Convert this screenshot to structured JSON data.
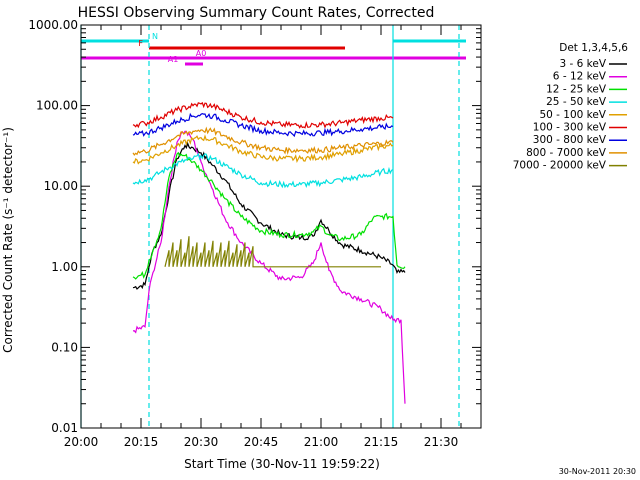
{
  "chart_data": {
    "type": "line",
    "title": "HESSI Observing Summary Count Rates, Corrected",
    "xlabel": "Start Time (30-Nov-11 19:59:22)",
    "ylabel": "Corrected Count Rate (s⁻¹ detector⁻¹)",
    "yscale": "log",
    "ylim": [
      0.01,
      1000
    ],
    "xlim_min": [
      0,
      100
    ],
    "x_tick_labels": [
      "20:00",
      "20:15",
      "20:30",
      "20:45",
      "21:00",
      "21:15",
      "21:30"
    ],
    "x_ticks_min": [
      0,
      15,
      30,
      45,
      60,
      75,
      90
    ],
    "y_tick_labels": [
      "1000.00",
      "100.00",
      "10.00",
      "1.00",
      "0.10",
      "0.01"
    ],
    "y_ticks": [
      1000,
      100,
      10,
      1,
      0.1,
      0.01
    ],
    "legend_title": "Det 1,3,4,5,6",
    "legend_placement": "right, outside",
    "timestamp": "30-Nov-2011 20:30",
    "flags": [
      {
        "label": "N",
        "color": "#00e0e0",
        "segments": [
          [
            0,
            17
          ],
          [
            78,
            100
          ]
        ]
      },
      {
        "label": "F",
        "color": "#e00000",
        "segments": [
          [
            17,
            66
          ]
        ]
      },
      {
        "label": "A0",
        "color": "#e000e0",
        "segments": [
          [
            0,
            100
          ]
        ]
      },
      {
        "label": "A1",
        "color": "#e000e0",
        "segments": [
          [
            26,
            30.5
          ]
        ]
      }
    ],
    "vlines": [
      {
        "x": 0,
        "color": "#00e0e0",
        "style": "solid"
      },
      {
        "x": 17,
        "color": "#00e0e0",
        "style": "dashed"
      },
      {
        "x": 78,
        "color": "#00e0e0",
        "style": "solid"
      },
      {
        "x": 94.5,
        "color": "#00e0e0",
        "style": "dashed"
      }
    ],
    "series": [
      {
        "name": "3 - 6 keV",
        "color": "#000000",
        "points": [
          [
            13,
            0.55
          ],
          [
            16,
            0.6
          ],
          [
            17,
            1.0
          ],
          [
            18,
            1.6
          ],
          [
            20,
            2.5
          ],
          [
            22,
            8
          ],
          [
            24,
            22
          ],
          [
            26,
            32
          ],
          [
            28,
            30
          ],
          [
            30,
            26
          ],
          [
            33,
            18
          ],
          [
            36,
            12
          ],
          [
            40,
            6
          ],
          [
            45,
            3.5
          ],
          [
            50,
            2.5
          ],
          [
            55,
            2.3
          ],
          [
            58,
            2.4
          ],
          [
            60,
            3.8
          ],
          [
            62,
            2.8
          ],
          [
            65,
            1.9
          ],
          [
            70,
            1.6
          ],
          [
            75,
            1.3
          ],
          [
            78,
            1.05
          ],
          [
            79,
            0.85
          ],
          [
            81,
            0.85
          ]
        ]
      },
      {
        "name": "6 - 12 keV",
        "color": "#e000e0",
        "points": [
          [
            13,
            0.16
          ],
          [
            16,
            0.18
          ],
          [
            17,
            0.5
          ],
          [
            18,
            0.85
          ],
          [
            20,
            2.0
          ],
          [
            22,
            10
          ],
          [
            24,
            35
          ],
          [
            25,
            45
          ],
          [
            26,
            48
          ],
          [
            28,
            38
          ],
          [
            30,
            20
          ],
          [
            33,
            9
          ],
          [
            36,
            4
          ],
          [
            40,
            2
          ],
          [
            45,
            1.1
          ],
          [
            50,
            0.7
          ],
          [
            55,
            0.75
          ],
          [
            58,
            1.1
          ],
          [
            60,
            2.0
          ],
          [
            62,
            0.9
          ],
          [
            65,
            0.5
          ],
          [
            70,
            0.4
          ],
          [
            75,
            0.3
          ],
          [
            78,
            0.22
          ],
          [
            80,
            0.22
          ],
          [
            81,
            0.02
          ]
        ]
      },
      {
        "name": "12 - 25 keV",
        "color": "#00e000",
        "points": [
          [
            13,
            0.75
          ],
          [
            16,
            0.8
          ],
          [
            17,
            1.2
          ],
          [
            18,
            1.6
          ],
          [
            20,
            3
          ],
          [
            22,
            13
          ],
          [
            24,
            25
          ],
          [
            26,
            24
          ],
          [
            28,
            20
          ],
          [
            30,
            16
          ],
          [
            33,
            11
          ],
          [
            36,
            7
          ],
          [
            40,
            4.2
          ],
          [
            45,
            2.8
          ],
          [
            50,
            2.5
          ],
          [
            55,
            2.5
          ],
          [
            58,
            2.7
          ],
          [
            60,
            3.2
          ],
          [
            62,
            2.5
          ],
          [
            65,
            2.2
          ],
          [
            70,
            2.5
          ],
          [
            73,
            4.0
          ],
          [
            75,
            4.2
          ],
          [
            78,
            4.2
          ],
          [
            79,
            1.05
          ],
          [
            81,
            1.0
          ]
        ]
      },
      {
        "name": "25 - 50 keV",
        "color": "#00e0e0",
        "points": [
          [
            13,
            11
          ],
          [
            16,
            12
          ],
          [
            18,
            13
          ],
          [
            20,
            15
          ],
          [
            22,
            17
          ],
          [
            25,
            20
          ],
          [
            28,
            22
          ],
          [
            30,
            24
          ],
          [
            33,
            22
          ],
          [
            36,
            18
          ],
          [
            40,
            14
          ],
          [
            45,
            11
          ],
          [
            50,
            10.5
          ],
          [
            55,
            10.5
          ],
          [
            60,
            11
          ],
          [
            65,
            12
          ],
          [
            70,
            13
          ],
          [
            75,
            15
          ],
          [
            78,
            16
          ]
        ]
      },
      {
        "name": "50 - 100 keV",
        "color": "#e0a000",
        "points": [
          [
            13,
            20
          ],
          [
            16,
            21
          ],
          [
            20,
            26
          ],
          [
            24,
            32
          ],
          [
            28,
            38
          ],
          [
            30,
            40
          ],
          [
            33,
            38
          ],
          [
            36,
            33
          ],
          [
            40,
            27
          ],
          [
            45,
            23
          ],
          [
            50,
            22
          ],
          [
            55,
            22
          ],
          [
            60,
            23
          ],
          [
            65,
            25
          ],
          [
            70,
            28
          ],
          [
            75,
            31
          ],
          [
            78,
            32
          ]
        ]
      },
      {
        "name": "100 - 300 keV",
        "color": "#e00000",
        "points": [
          [
            13,
            58
          ],
          [
            16,
            60
          ],
          [
            20,
            72
          ],
          [
            24,
            88
          ],
          [
            28,
            100
          ],
          [
            30,
            105
          ],
          [
            33,
            98
          ],
          [
            36,
            86
          ],
          [
            40,
            72
          ],
          [
            45,
            62
          ],
          [
            50,
            58
          ],
          [
            55,
            57
          ],
          [
            60,
            58
          ],
          [
            65,
            61
          ],
          [
            70,
            66
          ],
          [
            75,
            70
          ],
          [
            78,
            70
          ]
        ]
      },
      {
        "name": "300 - 800 keV",
        "color": "#0000e0",
        "points": [
          [
            13,
            43
          ],
          [
            16,
            45
          ],
          [
            20,
            53
          ],
          [
            24,
            64
          ],
          [
            28,
            74
          ],
          [
            30,
            78
          ],
          [
            33,
            74
          ],
          [
            36,
            66
          ],
          [
            40,
            57
          ],
          [
            45,
            49
          ],
          [
            50,
            46
          ],
          [
            55,
            45
          ],
          [
            60,
            46
          ],
          [
            65,
            48
          ],
          [
            70,
            51
          ],
          [
            75,
            54
          ],
          [
            78,
            55
          ]
        ]
      },
      {
        "name": "800 - 7000 keV",
        "color": "#e09000",
        "points": [
          [
            13,
            26
          ],
          [
            16,
            27
          ],
          [
            20,
            33
          ],
          [
            24,
            42
          ],
          [
            28,
            48
          ],
          [
            30,
            50
          ],
          [
            33,
            48
          ],
          [
            36,
            42
          ],
          [
            40,
            35
          ],
          [
            45,
            30
          ],
          [
            50,
            28
          ],
          [
            55,
            28
          ],
          [
            60,
            28
          ],
          [
            65,
            30
          ],
          [
            70,
            32
          ],
          [
            75,
            34
          ],
          [
            78,
            35
          ]
        ]
      },
      {
        "name": "7000 - 20000 keV",
        "color": "#808000",
        "points": [
          [
            21,
            1.0
          ],
          [
            22,
            1.6
          ],
          [
            22,
            1.0
          ],
          [
            23,
            2.0
          ],
          [
            23,
            1.0
          ],
          [
            24,
            1.6
          ],
          [
            24,
            1.0
          ],
          [
            25,
            2.2
          ],
          [
            25,
            1.0
          ],
          [
            26,
            1.5
          ],
          [
            26,
            1.0
          ],
          [
            27,
            2.4
          ],
          [
            27,
            1.0
          ],
          [
            28,
            1.8
          ],
          [
            28,
            1.0
          ],
          [
            29,
            2.0
          ],
          [
            29,
            1.0
          ],
          [
            30,
            1.5
          ],
          [
            30,
            1.0
          ],
          [
            31,
            2.0
          ],
          [
            31,
            1.0
          ],
          [
            32,
            1.6
          ],
          [
            32,
            1.0
          ],
          [
            33,
            2.1
          ],
          [
            33,
            1.0
          ],
          [
            34,
            1.5
          ],
          [
            34,
            1.0
          ],
          [
            35,
            2.0
          ],
          [
            35,
            1.0
          ],
          [
            36,
            1.6
          ],
          [
            36,
            1.0
          ],
          [
            37,
            2.1
          ],
          [
            37,
            1.0
          ],
          [
            38,
            1.5
          ],
          [
            38,
            1.0
          ],
          [
            39,
            1.9
          ],
          [
            39,
            1.0
          ],
          [
            40,
            1.6
          ],
          [
            40,
            1.0
          ],
          [
            41,
            2.0
          ],
          [
            41,
            1.0
          ],
          [
            42,
            1.5
          ],
          [
            42,
            1.0
          ],
          [
            43,
            1.8
          ],
          [
            43,
            1.0
          ],
          [
            44,
            1.0
          ],
          [
            68,
            1.0
          ],
          [
            75,
            1.0
          ]
        ]
      }
    ]
  }
}
